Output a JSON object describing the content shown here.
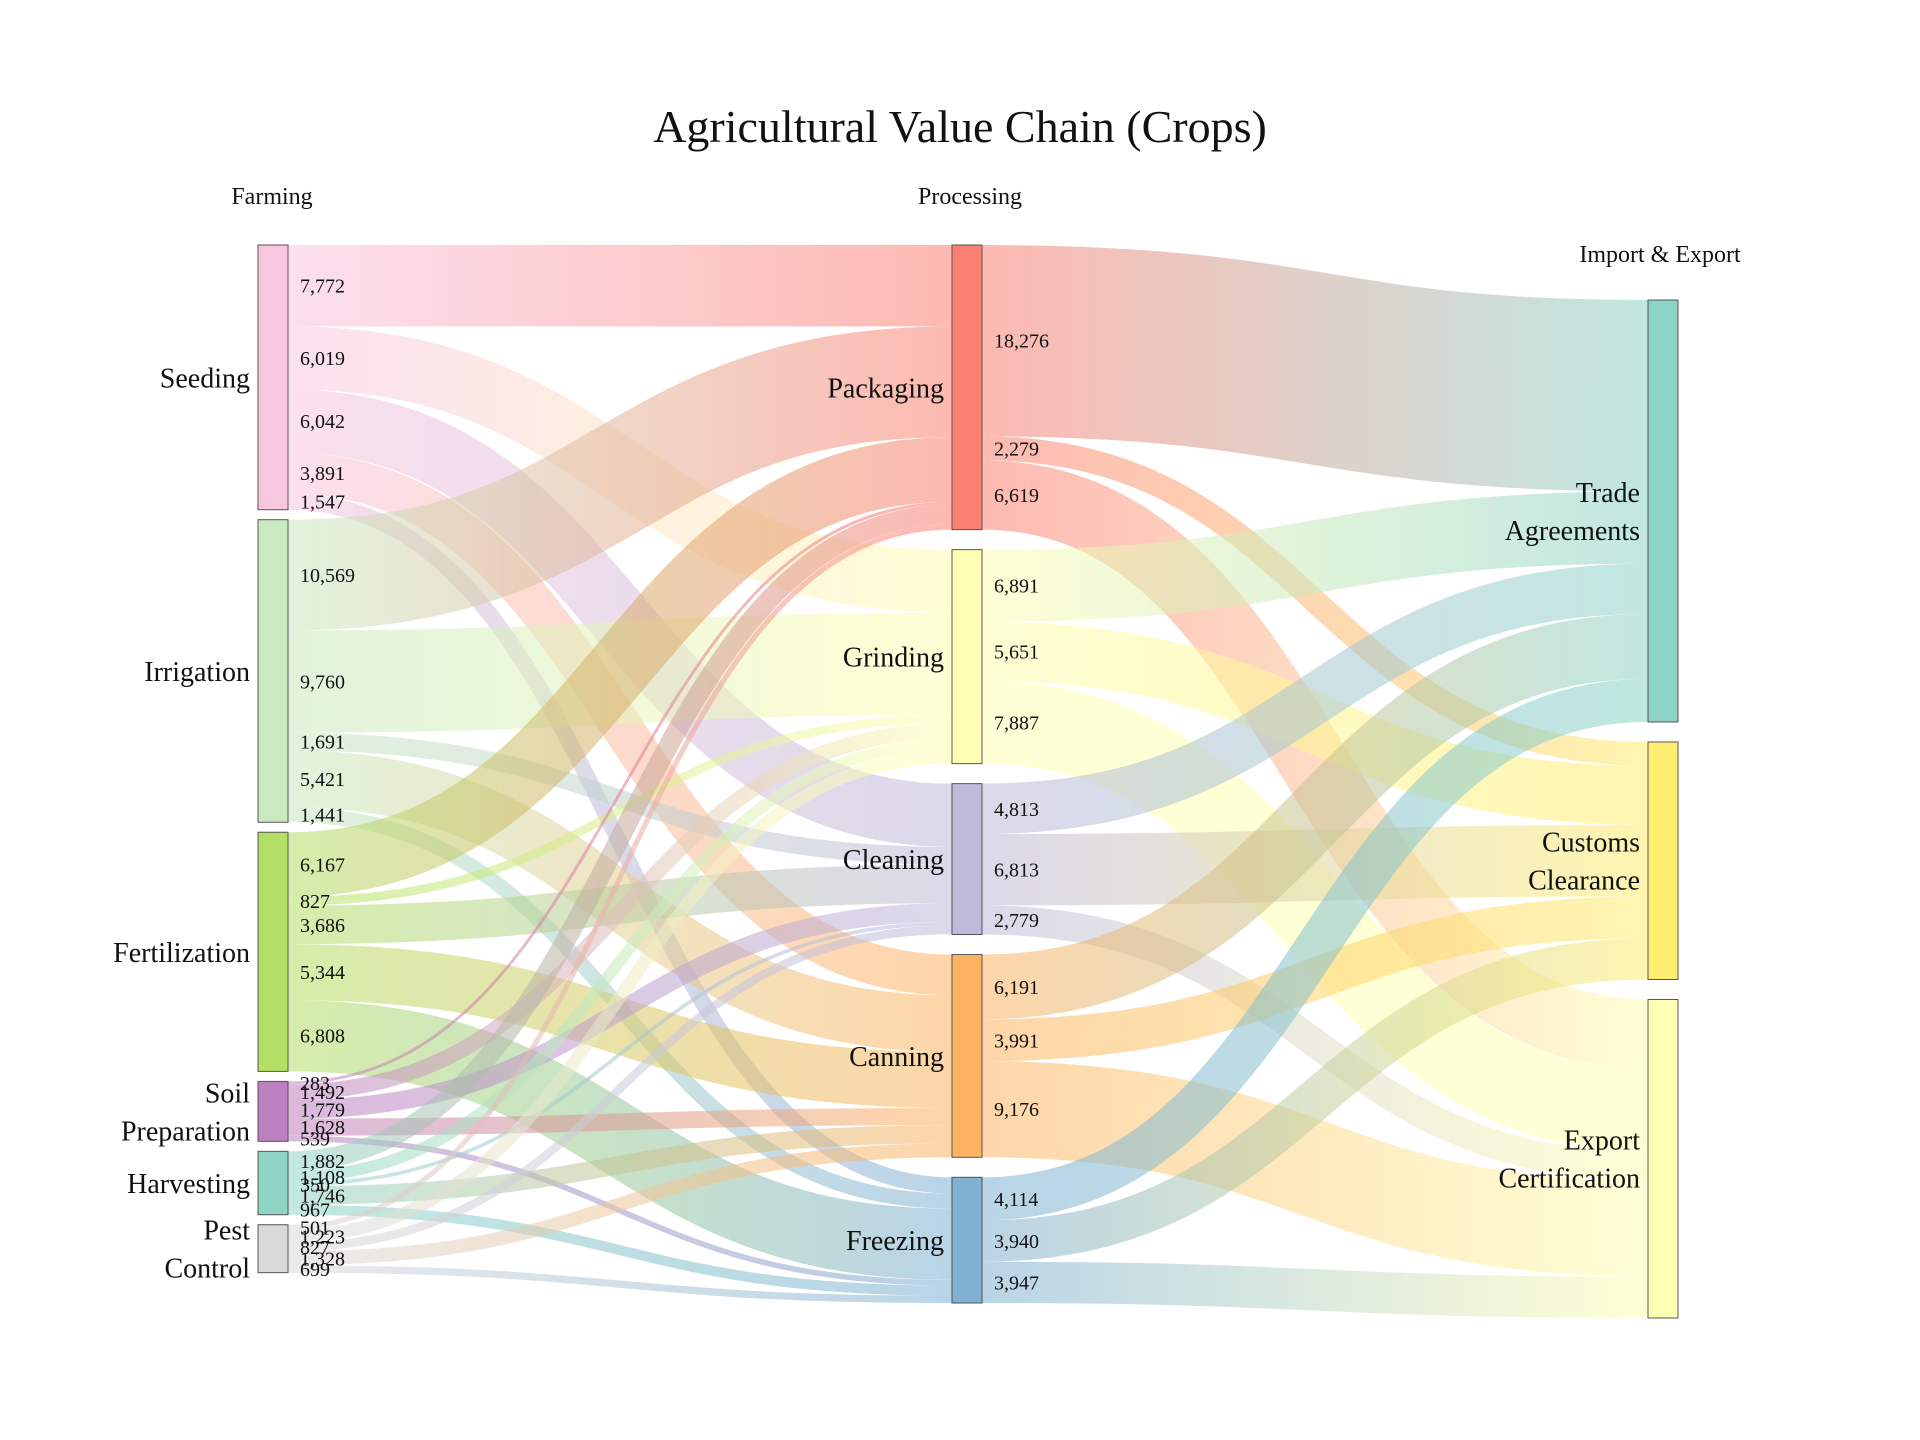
{
  "title": "Agricultural Value Chain (Crops)",
  "columns": [
    "Farming",
    "Processing",
    "Import & Export"
  ],
  "nodes": [
    {
      "id": "seeding",
      "label": "Seeding",
      "column": 0,
      "color": "#f8c6df"
    },
    {
      "id": "irrigation",
      "label": "Irrigation",
      "column": 0,
      "color": "#c9e9c0"
    },
    {
      "id": "fertilization",
      "label": "Fertilization",
      "column": 0,
      "color": "#b3df64"
    },
    {
      "id": "soil",
      "label": "Soil Preparation",
      "column": 0,
      "color": "#bd7fc0"
    },
    {
      "id": "harvesting",
      "label": "Harvesting",
      "column": 0,
      "color": "#8fd5c6"
    },
    {
      "id": "pest",
      "label": "Pest Control",
      "column": 0,
      "color": "#d9d9d9"
    },
    {
      "id": "packaging",
      "label": "Packaging",
      "column": 1,
      "color": "#fb8072"
    },
    {
      "id": "grinding",
      "label": "Grinding",
      "column": 1,
      "color": "#ffffb3"
    },
    {
      "id": "cleaning",
      "label": "Cleaning",
      "column": 1,
      "color": "#bebada"
    },
    {
      "id": "canning",
      "label": "Canning",
      "column": 1,
      "color": "#fdb462"
    },
    {
      "id": "freezing",
      "label": "Freezing",
      "column": 1,
      "color": "#80b1d3"
    },
    {
      "id": "trade",
      "label": "Trade Agreements",
      "column": 2,
      "color": "#8dd3c7"
    },
    {
      "id": "customs",
      "label": "Customs Clearance",
      "column": 2,
      "color": "#ffed6f"
    },
    {
      "id": "export",
      "label": "Export Certification",
      "column": 2,
      "color": "#ffffb3"
    }
  ],
  "links": [
    {
      "source": "seeding",
      "target": "packaging",
      "value": 7772,
      "label": "7,772"
    },
    {
      "source": "seeding",
      "target": "grinding",
      "value": 6019,
      "label": "6,019"
    },
    {
      "source": "seeding",
      "target": "cleaning",
      "value": 6042,
      "label": "6,042"
    },
    {
      "source": "seeding",
      "target": "canning",
      "value": 3891,
      "label": "3,891"
    },
    {
      "source": "seeding",
      "target": "freezing",
      "value": 1547,
      "label": "1,547"
    },
    {
      "source": "irrigation",
      "target": "packaging",
      "value": 10569,
      "label": "10,569"
    },
    {
      "source": "irrigation",
      "target": "grinding",
      "value": 9760,
      "label": "9,760"
    },
    {
      "source": "irrigation",
      "target": "cleaning",
      "value": 1691,
      "label": "1,691"
    },
    {
      "source": "irrigation",
      "target": "canning",
      "value": 5421,
      "label": "5,421"
    },
    {
      "source": "irrigation",
      "target": "freezing",
      "value": 1441,
      "label": "1,441"
    },
    {
      "source": "fertilization",
      "target": "packaging",
      "value": 6167,
      "label": "6,167"
    },
    {
      "source": "fertilization",
      "target": "grinding",
      "value": 827,
      "label": "827"
    },
    {
      "source": "fertilization",
      "target": "cleaning",
      "value": 3686,
      "label": "3,686"
    },
    {
      "source": "fertilization",
      "target": "canning",
      "value": 5344,
      "label": "5,344"
    },
    {
      "source": "fertilization",
      "target": "freezing",
      "value": 6808,
      "label": "6,808"
    },
    {
      "source": "soil",
      "target": "packaging",
      "value": 283,
      "label": "283"
    },
    {
      "source": "soil",
      "target": "grinding",
      "value": 1492,
      "label": "1,492"
    },
    {
      "source": "soil",
      "target": "cleaning",
      "value": 1779,
      "label": "1,779"
    },
    {
      "source": "soil",
      "target": "canning",
      "value": 1628,
      "label": "1,628"
    },
    {
      "source": "soil",
      "target": "freezing",
      "value": 539,
      "label": "539"
    },
    {
      "source": "harvesting",
      "target": "packaging",
      "value": 1882,
      "label": "1,882"
    },
    {
      "source": "harvesting",
      "target": "grinding",
      "value": 1108,
      "label": "1,108"
    },
    {
      "source": "harvesting",
      "target": "cleaning",
      "value": 350,
      "label": "350"
    },
    {
      "source": "harvesting",
      "target": "canning",
      "value": 1746,
      "label": "1,746"
    },
    {
      "source": "harvesting",
      "target": "freezing",
      "value": 967,
      "label": "967"
    },
    {
      "source": "pest",
      "target": "packaging",
      "value": 501,
      "label": "501"
    },
    {
      "source": "pest",
      "target": "grinding",
      "value": 1223,
      "label": "1,223"
    },
    {
      "source": "pest",
      "target": "cleaning",
      "value": 827,
      "label": "827"
    },
    {
      "source": "pest",
      "target": "canning",
      "value": 1328,
      "label": "1,328"
    },
    {
      "source": "pest",
      "target": "freezing",
      "value": 699,
      "label": "699"
    },
    {
      "source": "packaging",
      "target": "trade",
      "value": 18276,
      "label": "18,276"
    },
    {
      "source": "packaging",
      "target": "customs",
      "value": 2279,
      "label": "2,279"
    },
    {
      "source": "packaging",
      "target": "export",
      "value": 6619,
      "label": "6,619"
    },
    {
      "source": "grinding",
      "target": "trade",
      "value": 6891,
      "label": "6,891"
    },
    {
      "source": "grinding",
      "target": "customs",
      "value": 5651,
      "label": "5,651"
    },
    {
      "source": "grinding",
      "target": "export",
      "value": 7887,
      "label": "7,887"
    },
    {
      "source": "cleaning",
      "target": "trade",
      "value": 4813,
      "label": "4,813"
    },
    {
      "source": "cleaning",
      "target": "customs",
      "value": 6813,
      "label": "6,813"
    },
    {
      "source": "cleaning",
      "target": "export",
      "value": 2779,
      "label": "2,779"
    },
    {
      "source": "canning",
      "target": "trade",
      "value": 6191,
      "label": "6,191"
    },
    {
      "source": "canning",
      "target": "customs",
      "value": 3991,
      "label": "3,991"
    },
    {
      "source": "canning",
      "target": "export",
      "value": 9176,
      "label": "9,176"
    },
    {
      "source": "freezing",
      "target": "trade",
      "value": 4114,
      "label": "4,114"
    },
    {
      "source": "freezing",
      "target": "customs",
      "value": 3940,
      "label": "3,940"
    },
    {
      "source": "freezing",
      "target": "export",
      "value": 3947,
      "label": "3,947"
    }
  ]
}
